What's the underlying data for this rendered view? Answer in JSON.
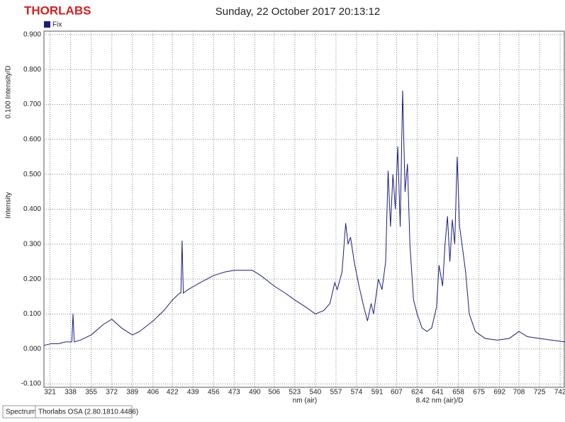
{
  "logo": "THORLABS",
  "status_bar": [
    "Spectrum",
    "Thorlabs OSA (2.80.1810.4486)"
  ],
  "chart_data": {
    "type": "line",
    "title": "Sunday, 22 October 2017 20:13:12",
    "x_label": "nm (air)",
    "x_scale_label": "8.42 nm (air)/D",
    "y_label": "Intensity",
    "y_scale_label": "0.100 Intensity/D",
    "xlim": [
      316,
      746
    ],
    "ylim": [
      -0.11,
      0.91
    ],
    "xticks": [
      321,
      338,
      355,
      372,
      389,
      406,
      422,
      439,
      456,
      473,
      490,
      506,
      523,
      540,
      557,
      574,
      591,
      607,
      624,
      641,
      658,
      675,
      692,
      708,
      725,
      742
    ],
    "yticks": [
      {
        "value": -0.1,
        "label": "-0.100"
      },
      {
        "value": 0,
        "label": "0.000"
      },
      {
        "value": 0.1,
        "label": "0.100"
      },
      {
        "value": 0.2,
        "label": "0.200"
      },
      {
        "value": 0.3,
        "label": "0.300"
      },
      {
        "value": 0.4,
        "label": "0.400"
      },
      {
        "value": 0.5,
        "label": "0.500"
      },
      {
        "value": 0.6,
        "label": "0.600"
      },
      {
        "value": 0.7,
        "label": "0.700"
      },
      {
        "value": 0.8,
        "label": "0.800"
      },
      {
        "value": 0.9,
        "label": "0.900"
      }
    ],
    "grid": true,
    "series": [
      {
        "name": "Fix",
        "color": "#1c1c80",
        "x": [
          316,
          322,
          328,
          334,
          339,
          340,
          341,
          346,
          355,
          365,
          372,
          380,
          389,
          395,
          406,
          415,
          422,
          428,
          429,
          430,
          431,
          435,
          445,
          456,
          465,
          473,
          480,
          488,
          495,
          506,
          515,
          523,
          532,
          540,
          547,
          552,
          556,
          558,
          562,
          565,
          567,
          569,
          572,
          576,
          580,
          583,
          586,
          588,
          592,
          595,
          598,
          600,
          602,
          604,
          606,
          608,
          610,
          612,
          614,
          616,
          618,
          621,
          624,
          628,
          632,
          636,
          640,
          642,
          645,
          647,
          649,
          651,
          653,
          655,
          657,
          659,
          661,
          664,
          667,
          672,
          680,
          690,
          700,
          708,
          715,
          725,
          735,
          746
        ],
        "values": [
          0.01,
          0.015,
          0.015,
          0.02,
          0.02,
          0.1,
          0.02,
          0.025,
          0.04,
          0.07,
          0.085,
          0.06,
          0.04,
          0.05,
          0.08,
          0.11,
          0.14,
          0.16,
          0.16,
          0.31,
          0.16,
          0.17,
          0.19,
          0.21,
          0.22,
          0.225,
          0.225,
          0.225,
          0.21,
          0.18,
          0.16,
          0.14,
          0.12,
          0.1,
          0.11,
          0.13,
          0.19,
          0.17,
          0.22,
          0.36,
          0.3,
          0.32,
          0.25,
          0.18,
          0.12,
          0.08,
          0.13,
          0.1,
          0.2,
          0.17,
          0.25,
          0.51,
          0.35,
          0.5,
          0.4,
          0.58,
          0.35,
          0.74,
          0.45,
          0.53,
          0.3,
          0.14,
          0.1,
          0.06,
          0.05,
          0.06,
          0.12,
          0.24,
          0.18,
          0.3,
          0.38,
          0.25,
          0.37,
          0.3,
          0.55,
          0.35,
          0.3,
          0.22,
          0.1,
          0.05,
          0.03,
          0.025,
          0.03,
          0.05,
          0.035,
          0.03,
          0.025,
          0.02
        ]
      }
    ]
  }
}
